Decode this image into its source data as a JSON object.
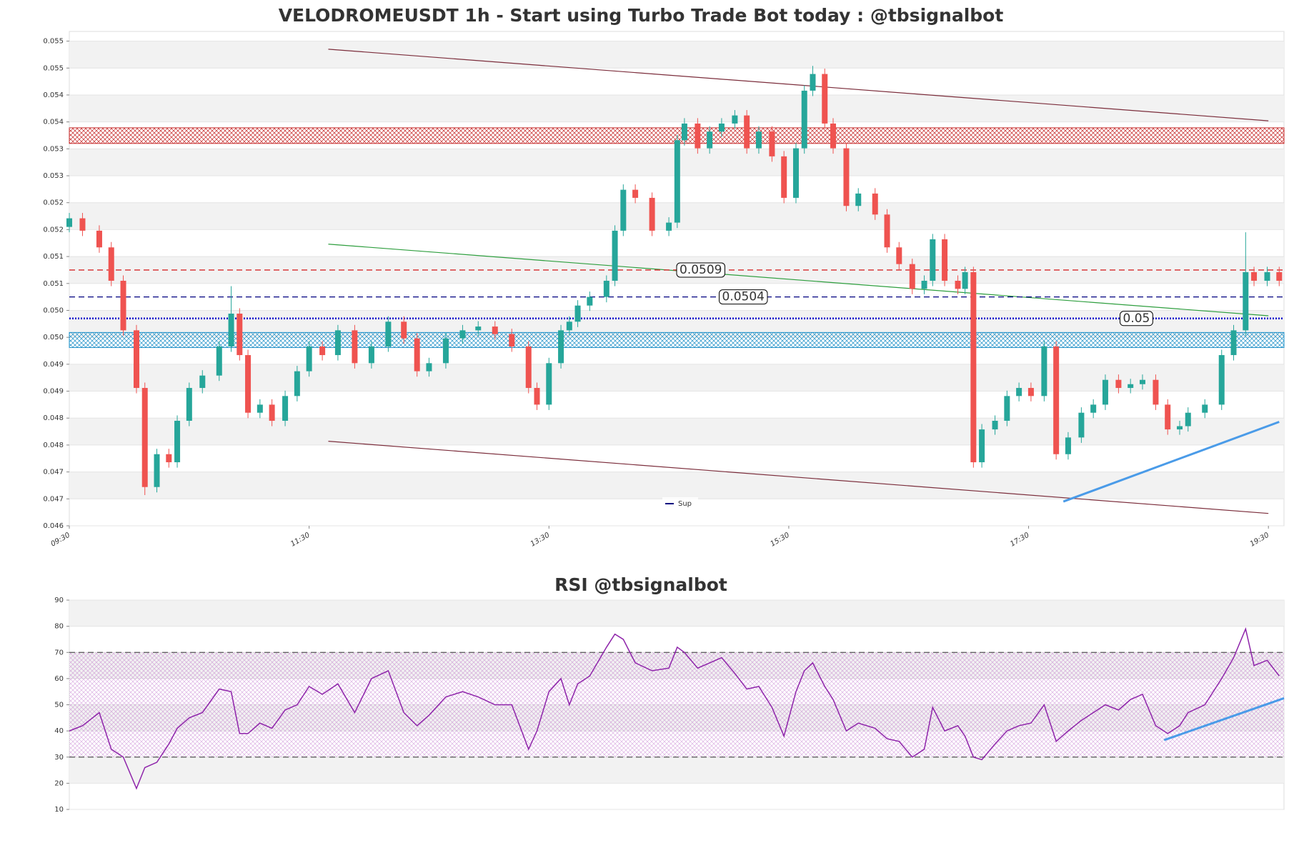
{
  "chart_data": [
    {
      "type": "candlestick",
      "title": "VELODROMEUSDT 1h - Start using Turbo Trade Bot today : @tbsignalbot",
      "up_color": "#26a69a",
      "down_color": "#ef5350",
      "xlim": [
        0,
        10.13
      ],
      "xticks": [
        {
          "value": 0,
          "label": "09:30"
        },
        {
          "value": 2,
          "label": "11:30"
        },
        {
          "value": 4,
          "label": "13:30"
        },
        {
          "value": 6,
          "label": "15:30"
        },
        {
          "value": 8,
          "label": "17:30"
        },
        {
          "value": 10,
          "label": "19:30"
        }
      ],
      "ylim": [
        0.04615,
        0.05533
      ],
      "yticks": [
        {
          "value": 0.04615,
          "label": "0.046"
        },
        {
          "value": 0.04665,
          "label": "0.047"
        },
        {
          "value": 0.04715,
          "label": "0.047"
        },
        {
          "value": 0.04765,
          "label": "0.048"
        },
        {
          "value": 0.04815,
          "label": "0.048"
        },
        {
          "value": 0.04865,
          "label": "0.049"
        },
        {
          "value": 0.04915,
          "label": "0.049"
        },
        {
          "value": 0.04965,
          "label": "0.050"
        },
        {
          "value": 0.05015,
          "label": "0.050"
        },
        {
          "value": 0.05065,
          "label": "0.051"
        },
        {
          "value": 0.05115,
          "label": "0.051"
        },
        {
          "value": 0.05165,
          "label": "0.052"
        },
        {
          "value": 0.05215,
          "label": "0.052"
        },
        {
          "value": 0.05265,
          "label": "0.053"
        },
        {
          "value": 0.05315,
          "label": "0.053"
        },
        {
          "value": 0.05365,
          "label": "0.054"
        },
        {
          "value": 0.05415,
          "label": "0.054"
        },
        {
          "value": 0.05465,
          "label": "0.055"
        },
        {
          "value": 0.05515,
          "label": "0.055"
        }
      ],
      "x": [
        0,
        0.11,
        0.25,
        0.35,
        0.45,
        0.56,
        0.63,
        0.73,
        0.83,
        0.9,
        1.0,
        1.11,
        1.25,
        1.35,
        1.42,
        1.49,
        1.59,
        1.69,
        1.8,
        1.9,
        2.0,
        2.11,
        2.24,
        2.38,
        2.52,
        2.66,
        2.79,
        2.9,
        3.0,
        3.14,
        3.28,
        3.41,
        3.55,
        3.69,
        3.83,
        3.9,
        4.0,
        4.1,
        4.17,
        4.24,
        4.34,
        4.48,
        4.55,
        4.62,
        4.72,
        4.86,
        5.0,
        5.07,
        5.13,
        5.24,
        5.34,
        5.44,
        5.55,
        5.65,
        5.75,
        5.86,
        5.96,
        6.06,
        6.13,
        6.2,
        6.3,
        6.37,
        6.48,
        6.58,
        6.72,
        6.82,
        6.92,
        7.03,
        7.13,
        7.2,
        7.3,
        7.41,
        7.47,
        7.54,
        7.61,
        7.72,
        7.82,
        7.92,
        8.02,
        8.13,
        8.23,
        8.33,
        8.44,
        8.54,
        8.64,
        8.75,
        8.85,
        8.95,
        9.06,
        9.16,
        9.26,
        9.33,
        9.47,
        9.61,
        9.71,
        9.81,
        9.88,
        9.99,
        10.09
      ],
      "open": [
        0.0517,
        0.05186,
        0.05163,
        0.05132,
        0.0507,
        0.04978,
        0.04871,
        0.04687,
        0.04748,
        0.04733,
        0.0481,
        0.04871,
        0.04894,
        0.04948,
        0.05009,
        0.04932,
        0.04825,
        0.0484,
        0.0481,
        0.04856,
        0.04902,
        0.04948,
        0.04932,
        0.04978,
        0.04917,
        0.04948,
        0.04994,
        0.04963,
        0.04902,
        0.04917,
        0.04963,
        0.04978,
        0.04985,
        0.04971,
        0.04948,
        0.04871,
        0.0484,
        0.04917,
        0.04978,
        0.04994,
        0.05024,
        0.0504,
        0.0507,
        0.05163,
        0.05239,
        0.05224,
        0.05163,
        0.05178,
        0.05331,
        0.05362,
        0.05316,
        0.05347,
        0.05362,
        0.05377,
        0.05316,
        0.05347,
        0.05301,
        0.05224,
        0.05316,
        0.05423,
        0.05454,
        0.05362,
        0.05316,
        0.05209,
        0.05232,
        0.05193,
        0.05132,
        0.05101,
        0.05055,
        0.0507,
        0.05147,
        0.0507,
        0.05055,
        0.05086,
        0.04733,
        0.04794,
        0.0481,
        0.04856,
        0.04871,
        0.04856,
        0.04948,
        0.04748,
        0.04779,
        0.04825,
        0.0484,
        0.04886,
        0.04871,
        0.04878,
        0.04886,
        0.0484,
        0.04794,
        0.048,
        0.04825,
        0.0484,
        0.04932,
        0.04978,
        0.05086,
        0.0507,
        0.05086
      ],
      "high": [
        0.05196,
        0.05196,
        0.05173,
        0.05142,
        0.0508,
        0.04988,
        0.04881,
        0.04758,
        0.04758,
        0.0482,
        0.04881,
        0.04904,
        0.04958,
        0.0506,
        0.05019,
        0.04942,
        0.0485,
        0.0485,
        0.04866,
        0.04912,
        0.04958,
        0.04958,
        0.04988,
        0.04988,
        0.04958,
        0.05004,
        0.05004,
        0.04973,
        0.04927,
        0.04973,
        0.04988,
        0.04995,
        0.04995,
        0.04981,
        0.04958,
        0.04881,
        0.04927,
        0.04988,
        0.05004,
        0.05034,
        0.0505,
        0.0508,
        0.05173,
        0.05249,
        0.05249,
        0.05234,
        0.05188,
        0.05341,
        0.05372,
        0.05372,
        0.05357,
        0.05372,
        0.05387,
        0.05387,
        0.05357,
        0.05357,
        0.05311,
        0.05326,
        0.05433,
        0.05469,
        0.05464,
        0.05372,
        0.05326,
        0.05242,
        0.05242,
        0.05203,
        0.05142,
        0.05111,
        0.0508,
        0.05157,
        0.05157,
        0.0508,
        0.05096,
        0.05096,
        0.04804,
        0.0482,
        0.04866,
        0.04881,
        0.04881,
        0.04958,
        0.04958,
        0.04789,
        0.04835,
        0.0485,
        0.04896,
        0.04896,
        0.04888,
        0.04896,
        0.04896,
        0.0485,
        0.0481,
        0.04835,
        0.0485,
        0.04942,
        0.04988,
        0.0516,
        0.05096,
        0.05096,
        0.05096
      ],
      "low": [
        0.0516,
        0.05153,
        0.05122,
        0.0506,
        0.04968,
        0.04861,
        0.04672,
        0.04677,
        0.04723,
        0.04723,
        0.048,
        0.04861,
        0.04884,
        0.04938,
        0.04922,
        0.04815,
        0.04815,
        0.048,
        0.048,
        0.04846,
        0.04892,
        0.04922,
        0.04922,
        0.04907,
        0.04907,
        0.04938,
        0.04953,
        0.04892,
        0.04892,
        0.04907,
        0.04953,
        0.04968,
        0.04961,
        0.04938,
        0.04861,
        0.0483,
        0.0483,
        0.04907,
        0.04968,
        0.04984,
        0.05014,
        0.0503,
        0.0506,
        0.05153,
        0.05214,
        0.05153,
        0.05153,
        0.05168,
        0.05321,
        0.05306,
        0.05306,
        0.05337,
        0.05352,
        0.05306,
        0.05306,
        0.05291,
        0.05214,
        0.05214,
        0.05306,
        0.05413,
        0.05352,
        0.05306,
        0.05199,
        0.05199,
        0.05183,
        0.05122,
        0.05091,
        0.05045,
        0.05045,
        0.0506,
        0.0506,
        0.05045,
        0.05045,
        0.04723,
        0.04723,
        0.04784,
        0.048,
        0.04846,
        0.04846,
        0.04846,
        0.04738,
        0.04738,
        0.04769,
        0.04815,
        0.0483,
        0.04861,
        0.04861,
        0.04868,
        0.0483,
        0.04784,
        0.04784,
        0.0479,
        0.04815,
        0.0483,
        0.04922,
        0.04968,
        0.0506,
        0.0506,
        0.0506
      ],
      "close": [
        0.05186,
        0.05163,
        0.05132,
        0.0507,
        0.04978,
        0.04871,
        0.04687,
        0.04748,
        0.04733,
        0.0481,
        0.04871,
        0.04894,
        0.04948,
        0.05009,
        0.04932,
        0.04825,
        0.0484,
        0.0481,
        0.04856,
        0.04902,
        0.04948,
        0.04932,
        0.04978,
        0.04917,
        0.04948,
        0.04994,
        0.04963,
        0.04902,
        0.04917,
        0.04963,
        0.04978,
        0.04985,
        0.04971,
        0.04948,
        0.04871,
        0.0484,
        0.04917,
        0.04978,
        0.04994,
        0.05024,
        0.0504,
        0.0507,
        0.05163,
        0.05239,
        0.05224,
        0.05163,
        0.05178,
        0.05331,
        0.05362,
        0.05316,
        0.05347,
        0.05362,
        0.05377,
        0.05316,
        0.05347,
        0.05301,
        0.05224,
        0.05316,
        0.05423,
        0.05454,
        0.05362,
        0.05316,
        0.05209,
        0.05232,
        0.05193,
        0.05132,
        0.05101,
        0.05055,
        0.0507,
        0.05147,
        0.0507,
        0.05055,
        0.05086,
        0.04733,
        0.04794,
        0.0481,
        0.04856,
        0.04871,
        0.04856,
        0.04948,
        0.04748,
        0.04779,
        0.04825,
        0.0484,
        0.04886,
        0.04871,
        0.04878,
        0.04886,
        0.0484,
        0.04794,
        0.048,
        0.04825,
        0.0484,
        0.04932,
        0.04978,
        0.05086,
        0.0507,
        0.05086,
        0.0507
      ],
      "zones": [
        {
          "from": 0.05325,
          "to": 0.05354,
          "color": "#c62828"
        },
        {
          "from": 0.04946,
          "to": 0.04974,
          "color": "#1e90c8"
        }
      ],
      "hlines": [
        {
          "value": 0.0509,
          "color": "#d62728",
          "style": "dashed"
        },
        {
          "value": 0.0504,
          "color": "#000080",
          "style": "dashed",
          "name": "Sup"
        },
        {
          "value": 0.05,
          "color": "#0000cc",
          "style": "dotted"
        }
      ],
      "trendlines": [
        {
          "x": [
            2.16,
            10.0
          ],
          "y": [
            0.055,
            0.05367
          ],
          "color": "#7b2d3b"
        },
        {
          "x": [
            2.16,
            10.0
          ],
          "y": [
            0.04772,
            0.04638
          ],
          "color": "#7b2d3b"
        },
        {
          "x": [
            2.16,
            10.0
          ],
          "y": [
            0.05138,
            0.05005
          ],
          "color": "#2e9e3e"
        },
        {
          "x": [
            8.29,
            10.09
          ],
          "y": [
            0.0466,
            0.04808
          ],
          "color": "#4a9be8"
        }
      ],
      "legend": "lower center"
    },
    {
      "type": "line",
      "title": "RSI @tbsignalbot",
      "color": "#8e24aa",
      "xlim": [
        0,
        10.13
      ],
      "ylim": [
        10,
        90
      ],
      "yticks": [
        10,
        20,
        30,
        40,
        50,
        60,
        70,
        80,
        90
      ],
      "x": [
        0,
        0.11,
        0.25,
        0.35,
        0.45,
        0.56,
        0.63,
        0.73,
        0.83,
        0.9,
        1.0,
        1.11,
        1.25,
        1.35,
        1.42,
        1.49,
        1.59,
        1.69,
        1.8,
        1.9,
        2.0,
        2.11,
        2.24,
        2.38,
        2.52,
        2.66,
        2.79,
        2.9,
        3.0,
        3.14,
        3.28,
        3.41,
        3.55,
        3.69,
        3.83,
        3.9,
        4.0,
        4.1,
        4.17,
        4.24,
        4.34,
        4.48,
        4.55,
        4.62,
        4.72,
        4.86,
        5.0,
        5.07,
        5.13,
        5.24,
        5.34,
        5.44,
        5.55,
        5.65,
        5.75,
        5.86,
        5.96,
        6.06,
        6.13,
        6.2,
        6.3,
        6.37,
        6.48,
        6.58,
        6.72,
        6.82,
        6.92,
        7.03,
        7.13,
        7.2,
        7.3,
        7.41,
        7.47,
        7.54,
        7.61,
        7.72,
        7.82,
        7.92,
        8.02,
        8.13,
        8.23,
        8.33,
        8.44,
        8.54,
        8.64,
        8.75,
        8.85,
        8.95,
        9.06,
        9.16,
        9.26,
        9.33,
        9.47,
        9.61,
        9.71,
        9.81,
        9.88,
        9.99,
        10.09
      ],
      "values": [
        40,
        42,
        47,
        33,
        30,
        18,
        26,
        28,
        35,
        41,
        45,
        47,
        56,
        55,
        39,
        39,
        43,
        41,
        48,
        50,
        57,
        54,
        58,
        47,
        60,
        63,
        47,
        42,
        46,
        53,
        55,
        53,
        50,
        50,
        33,
        40,
        55,
        60,
        50,
        58,
        61,
        72,
        77,
        75,
        66,
        63,
        64,
        72,
        70,
        64,
        66,
        68,
        62,
        56,
        57,
        49,
        38,
        55,
        63,
        66,
        57,
        52,
        40,
        43,
        41,
        37,
        36,
        30,
        33,
        49,
        40,
        42,
        38,
        30,
        29,
        35,
        40,
        42,
        43,
        50,
        36,
        40,
        44,
        47,
        50,
        48,
        52,
        54,
        42,
        39,
        42,
        47,
        50,
        60,
        68,
        79,
        65,
        67,
        61
      ],
      "band": {
        "from": 30,
        "to": 70,
        "color": "#9c27b0"
      },
      "hlines": [
        {
          "value": 70,
          "color": "#555555",
          "style": "dashed"
        },
        {
          "value": 30,
          "color": "#555555",
          "style": "dashed"
        }
      ],
      "trendlines": [
        {
          "x": [
            9.13,
            10.13
          ],
          "y": [
            36.5,
            52.5
          ],
          "color": "#4a9be8"
        }
      ]
    }
  ]
}
